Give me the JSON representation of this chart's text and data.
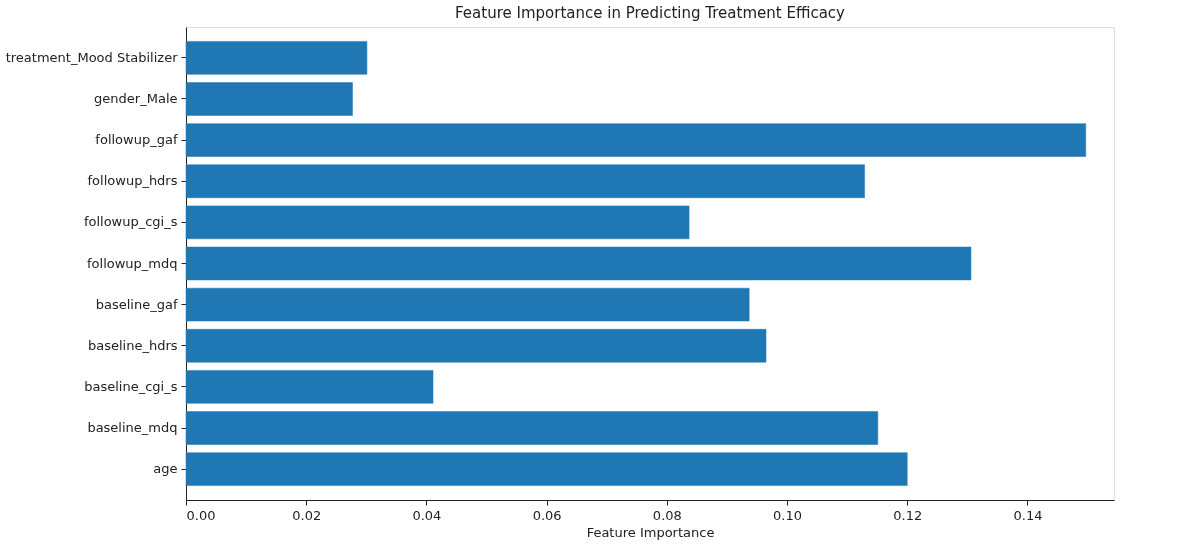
{
  "chart_data": {
    "type": "bar",
    "orientation": "horizontal",
    "title": "Feature Importance in Predicting Treatment Efficacy",
    "xlabel": "Feature Importance",
    "categories": [
      "treatment_Mood Stabilizer",
      "gender_Male",
      "followup_gaf",
      "followup_hdrs",
      "followup_cgi_s",
      "followup_mdq",
      "baseline_gaf",
      "baseline_hdrs",
      "baseline_cgi_s",
      "baseline_mdq",
      "age"
    ],
    "values": [
      0.0301,
      0.0277,
      0.1497,
      0.1129,
      0.0837,
      0.1306,
      0.0937,
      0.0965,
      0.0411,
      0.1151,
      0.12
    ],
    "color": "#1f77b4",
    "xlim": [
      0,
      0.1544
    ],
    "xticks": [
      {
        "value": 0,
        "label": "0.00"
      },
      0.02,
      0.04,
      0.06,
      0.08,
      {
        "value": 0.1,
        "label": "0.10"
      },
      0.12,
      0.14
    ],
    "grid": false
  }
}
